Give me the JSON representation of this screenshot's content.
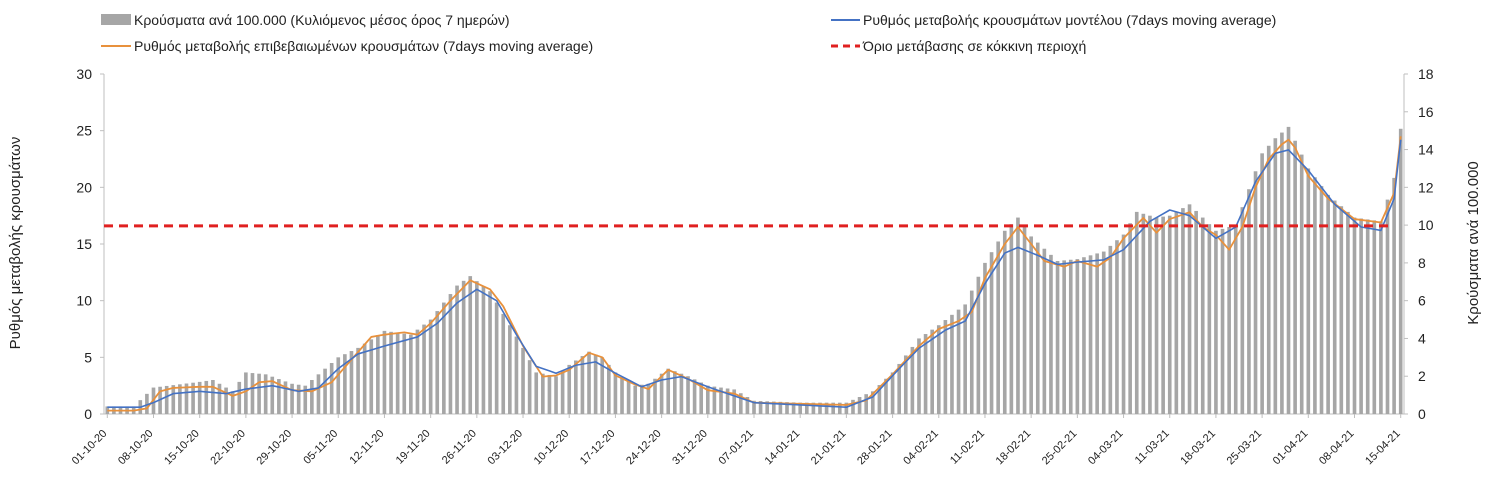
{
  "chart_data": {
    "type": "bar",
    "legend": {
      "placement": "top",
      "entries": [
        {
          "series": "cases",
          "label": "Κρούσματα ανά 100.000 (Κυλιόμενος μέσος όρος 7 ημερών)"
        },
        {
          "series": "model",
          "label": "Ρυθμός μεταβολής κρουσμάτων μοντέλου (7days moving average)"
        },
        {
          "series": "confirmed",
          "label": "Ρυθμός μεταβολής επιβεβαιωμένων κρουσμάτων (7days moving average)"
        },
        {
          "series": "threshold",
          "label": "Όριο μετάβασης σε κόκκινη περιοχή"
        }
      ]
    },
    "ylabel_left": "Ρυθμός μεταβολής κρουσμάτων",
    "ylabel_right": "Κρούσματα ανά 100.000",
    "ylim_left": [
      0,
      30
    ],
    "ylim_right": [
      0,
      18
    ],
    "yticks_left": [
      "0",
      "5",
      "10",
      "15",
      "20",
      "25",
      "30"
    ],
    "yticks_right": [
      "0",
      "2",
      "4",
      "6",
      "8",
      "10",
      "12",
      "14",
      "16",
      "18"
    ],
    "xticks": [
      "01-10-20",
      "08-10-20",
      "15-10-20",
      "22-10-20",
      "29-10-20",
      "05-11-20",
      "12-11-20",
      "19-11-20",
      "26-11-20",
      "03-12-20",
      "10-12-20",
      "17-12-20",
      "24-12-20",
      "31-12-20",
      "07-01-21",
      "14-01-21",
      "21-01-21",
      "28-01-21",
      "04-02-21",
      "11-02-21",
      "18-02-21",
      "25-02-21",
      "04-03-21",
      "11-03-21",
      "18-03-21",
      "25-03-21",
      "01-04-21",
      "08-04-21",
      "15-04-21"
    ],
    "x_start": "01-10-20",
    "x_end": "15-04-21",
    "grid": false,
    "colors": {
      "cases": "#a6a6a6",
      "confirmed": "#e8913c",
      "model": "#4472c4",
      "threshold": "#e02020"
    },
    "threshold_left": 16.6,
    "series_cases_right_axis": {
      "name": "Κρούσματα ανά 100.000 (Κυλιόμενος μέσος όρος 7 ημερών)",
      "anchors": [
        [
          "01-10-20",
          0.4
        ],
        [
          "05-10-20",
          0.4
        ],
        [
          "08-10-20",
          1.4
        ],
        [
          "15-10-20",
          1.7
        ],
        [
          "17-10-20",
          1.8
        ],
        [
          "20-10-20",
          1.2
        ],
        [
          "22-10-20",
          2.2
        ],
        [
          "25-10-20",
          2.1
        ],
        [
          "29-10-20",
          1.6
        ],
        [
          "31-10-20",
          1.5
        ],
        [
          "05-11-20",
          3.0
        ],
        [
          "08-11-20",
          3.5
        ],
        [
          "12-11-20",
          4.4
        ],
        [
          "16-11-20",
          4.2
        ],
        [
          "19-11-20",
          5.0
        ],
        [
          "23-11-20",
          6.8
        ],
        [
          "25-11-20",
          7.3
        ],
        [
          "28-11-20",
          6.5
        ],
        [
          "03-12-20",
          3.5
        ],
        [
          "05-12-20",
          2.2
        ],
        [
          "08-12-20",
          2.0
        ],
        [
          "10-12-20",
          2.6
        ],
        [
          "13-12-20",
          3.3
        ],
        [
          "15-12-20",
          3.0
        ],
        [
          "17-12-20",
          2.2
        ],
        [
          "20-12-20",
          1.5
        ],
        [
          "22-12-20",
          1.6
        ],
        [
          "25-12-20",
          2.4
        ],
        [
          "28-12-20",
          2.0
        ],
        [
          "31-12-20",
          1.5
        ],
        [
          "04-01-21",
          1.3
        ],
        [
          "07-01-21",
          0.7
        ],
        [
          "14-01-21",
          0.6
        ],
        [
          "21-01-21",
          0.6
        ],
        [
          "25-01-21",
          1.2
        ],
        [
          "28-01-21",
          2.2
        ],
        [
          "01-02-21",
          4.0
        ],
        [
          "04-02-21",
          4.7
        ],
        [
          "08-02-21",
          5.8
        ],
        [
          "11-02-21",
          8.0
        ],
        [
          "14-02-21",
          9.7
        ],
        [
          "16-02-21",
          10.4
        ],
        [
          "18-02-21",
          9.4
        ],
        [
          "22-02-21",
          8.1
        ],
        [
          "25-02-21",
          8.2
        ],
        [
          "01-03-21",
          8.6
        ],
        [
          "04-03-21",
          9.5
        ],
        [
          "06-03-21",
          10.7
        ],
        [
          "09-03-21",
          10.4
        ],
        [
          "11-03-21",
          10.5
        ],
        [
          "14-03-21",
          11.1
        ],
        [
          "18-03-21",
          9.7
        ],
        [
          "21-03-21",
          10.0
        ],
        [
          "25-03-21",
          13.8
        ],
        [
          "27-03-21",
          14.6
        ],
        [
          "29-03-21",
          15.2
        ],
        [
          "01-04-21",
          13.0
        ],
        [
          "04-04-21",
          11.6
        ],
        [
          "08-04-21",
          10.4
        ],
        [
          "12-04-21",
          10.2
        ],
        [
          "14-04-21",
          12.5
        ],
        [
          "15-04-21",
          15.1
        ]
      ]
    },
    "series_confirmed_left_axis": {
      "name": "Ρυθμός μεταβολής επιβεβαιωμένων κρουσμάτων (7days moving average)",
      "anchors": [
        [
          "01-10-20",
          0.3
        ],
        [
          "05-10-20",
          0.3
        ],
        [
          "07-10-20",
          0.5
        ],
        [
          "09-10-20",
          2.0
        ],
        [
          "11-10-20",
          2.3
        ],
        [
          "15-10-20",
          2.4
        ],
        [
          "17-10-20",
          2.4
        ],
        [
          "20-10-20",
          1.6
        ],
        [
          "22-10-20",
          2.0
        ],
        [
          "24-10-20",
          2.8
        ],
        [
          "26-10-20",
          2.9
        ],
        [
          "29-10-20",
          2.1
        ],
        [
          "01-11-20",
          2.0
        ],
        [
          "04-11-20",
          2.8
        ],
        [
          "07-11-20",
          4.8
        ],
        [
          "10-11-20",
          6.8
        ],
        [
          "12-11-20",
          7.0
        ],
        [
          "15-11-20",
          7.2
        ],
        [
          "17-11-20",
          7.0
        ],
        [
          "19-11-20",
          8.0
        ],
        [
          "22-11-20",
          10.0
        ],
        [
          "25-11-20",
          11.8
        ],
        [
          "28-11-20",
          11.0
        ],
        [
          "30-11-20",
          9.5
        ],
        [
          "03-12-20",
          6.0
        ],
        [
          "06-12-20",
          3.3
        ],
        [
          "08-12-20",
          3.4
        ],
        [
          "10-12-20",
          3.9
        ],
        [
          "13-12-20",
          5.4
        ],
        [
          "15-12-20",
          5.0
        ],
        [
          "17-12-20",
          3.4
        ],
        [
          "20-12-20",
          2.6
        ],
        [
          "22-12-20",
          2.2
        ],
        [
          "25-12-20",
          3.9
        ],
        [
          "28-12-20",
          3.1
        ],
        [
          "31-12-20",
          2.1
        ],
        [
          "04-01-21",
          1.8
        ],
        [
          "07-01-21",
          1.0
        ],
        [
          "14-01-21",
          0.9
        ],
        [
          "21-01-21",
          0.8
        ],
        [
          "24-01-21",
          1.2
        ],
        [
          "28-01-21",
          3.5
        ],
        [
          "01-02-21",
          6.0
        ],
        [
          "04-02-21",
          7.5
        ],
        [
          "07-02-21",
          8.2
        ],
        [
          "09-02-21",
          9.0
        ],
        [
          "11-02-21",
          12.0
        ],
        [
          "14-02-21",
          15.0
        ],
        [
          "16-02-21",
          16.5
        ],
        [
          "18-02-21",
          15.0
        ],
        [
          "20-02-21",
          13.5
        ],
        [
          "23-02-21",
          13.0
        ],
        [
          "25-02-21",
          13.5
        ],
        [
          "28-02-21",
          13.0
        ],
        [
          "02-03-21",
          13.8
        ],
        [
          "04-03-21",
          15.5
        ],
        [
          "07-03-21",
          17.3
        ],
        [
          "09-03-21",
          16.0
        ],
        [
          "11-03-21",
          17.2
        ],
        [
          "14-03-21",
          17.8
        ],
        [
          "16-03-21",
          16.5
        ],
        [
          "18-03-21",
          15.8
        ],
        [
          "20-03-21",
          14.5
        ],
        [
          "22-03-21",
          16.5
        ],
        [
          "24-03-21",
          20.0
        ],
        [
          "26-03-21",
          22.5
        ],
        [
          "28-03-21",
          23.8
        ],
        [
          "29-03-21",
          24.2
        ],
        [
          "30-03-21",
          23.5
        ],
        [
          "01-04-21",
          21.0
        ],
        [
          "04-04-21",
          19.0
        ],
        [
          "08-04-21",
          17.2
        ],
        [
          "12-04-21",
          16.9
        ],
        [
          "14-04-21",
          19.5
        ],
        [
          "15-04-21",
          24.5
        ]
      ]
    },
    "series_model_left_axis": {
      "name": "Ρυθμός μεταβολής κρουσμάτων μοντέλου (7days moving average)",
      "anchors": [
        [
          "01-10-20",
          0.6
        ],
        [
          "06-10-20",
          0.6
        ],
        [
          "08-10-20",
          1.0
        ],
        [
          "11-10-20",
          1.8
        ],
        [
          "15-10-20",
          2.0
        ],
        [
          "19-10-20",
          1.8
        ],
        [
          "22-10-20",
          2.2
        ],
        [
          "26-10-20",
          2.5
        ],
        [
          "30-10-20",
          2.0
        ],
        [
          "02-11-20",
          2.3
        ],
        [
          "05-11-20",
          4.0
        ],
        [
          "08-11-20",
          5.3
        ],
        [
          "12-11-20",
          6.0
        ],
        [
          "17-11-20",
          6.8
        ],
        [
          "20-11-20",
          8.0
        ],
        [
          "23-11-20",
          9.8
        ],
        [
          "26-11-20",
          11.0
        ],
        [
          "29-11-20",
          10.0
        ],
        [
          "02-12-20",
          7.0
        ],
        [
          "05-12-20",
          4.2
        ],
        [
          "08-12-20",
          3.6
        ],
        [
          "11-12-20",
          4.3
        ],
        [
          "14-12-20",
          4.6
        ],
        [
          "17-12-20",
          3.6
        ],
        [
          "21-12-20",
          2.4
        ],
        [
          "24-12-20",
          3.0
        ],
        [
          "27-12-20",
          3.3
        ],
        [
          "31-12-20",
          2.4
        ],
        [
          "04-01-21",
          1.6
        ],
        [
          "07-01-21",
          1.0
        ],
        [
          "14-01-21",
          0.8
        ],
        [
          "21-01-21",
          0.6
        ],
        [
          "25-01-21",
          1.5
        ],
        [
          "29-01-21",
          4.0
        ],
        [
          "01-02-21",
          5.8
        ],
        [
          "05-02-21",
          7.4
        ],
        [
          "08-02-21",
          8.2
        ],
        [
          "11-02-21",
          11.5
        ],
        [
          "14-02-21",
          14.2
        ],
        [
          "16-02-21",
          14.7
        ],
        [
          "19-02-21",
          14.0
        ],
        [
          "22-02-21",
          13.2
        ],
        [
          "25-02-21",
          13.4
        ],
        [
          "01-03-21",
          13.6
        ],
        [
          "04-03-21",
          14.5
        ],
        [
          "08-03-21",
          17.0
        ],
        [
          "11-03-21",
          18.0
        ],
        [
          "14-03-21",
          17.5
        ],
        [
          "18-03-21",
          15.5
        ],
        [
          "21-03-21",
          16.5
        ],
        [
          "24-03-21",
          20.5
        ],
        [
          "27-03-21",
          23.0
        ],
        [
          "29-03-21",
          23.3
        ],
        [
          "01-04-21",
          21.5
        ],
        [
          "05-04-21",
          18.5
        ],
        [
          "09-04-21",
          16.5
        ],
        [
          "12-04-21",
          16.2
        ],
        [
          "14-04-21",
          19.0
        ],
        [
          "15-04-21",
          24.2
        ]
      ]
    }
  }
}
